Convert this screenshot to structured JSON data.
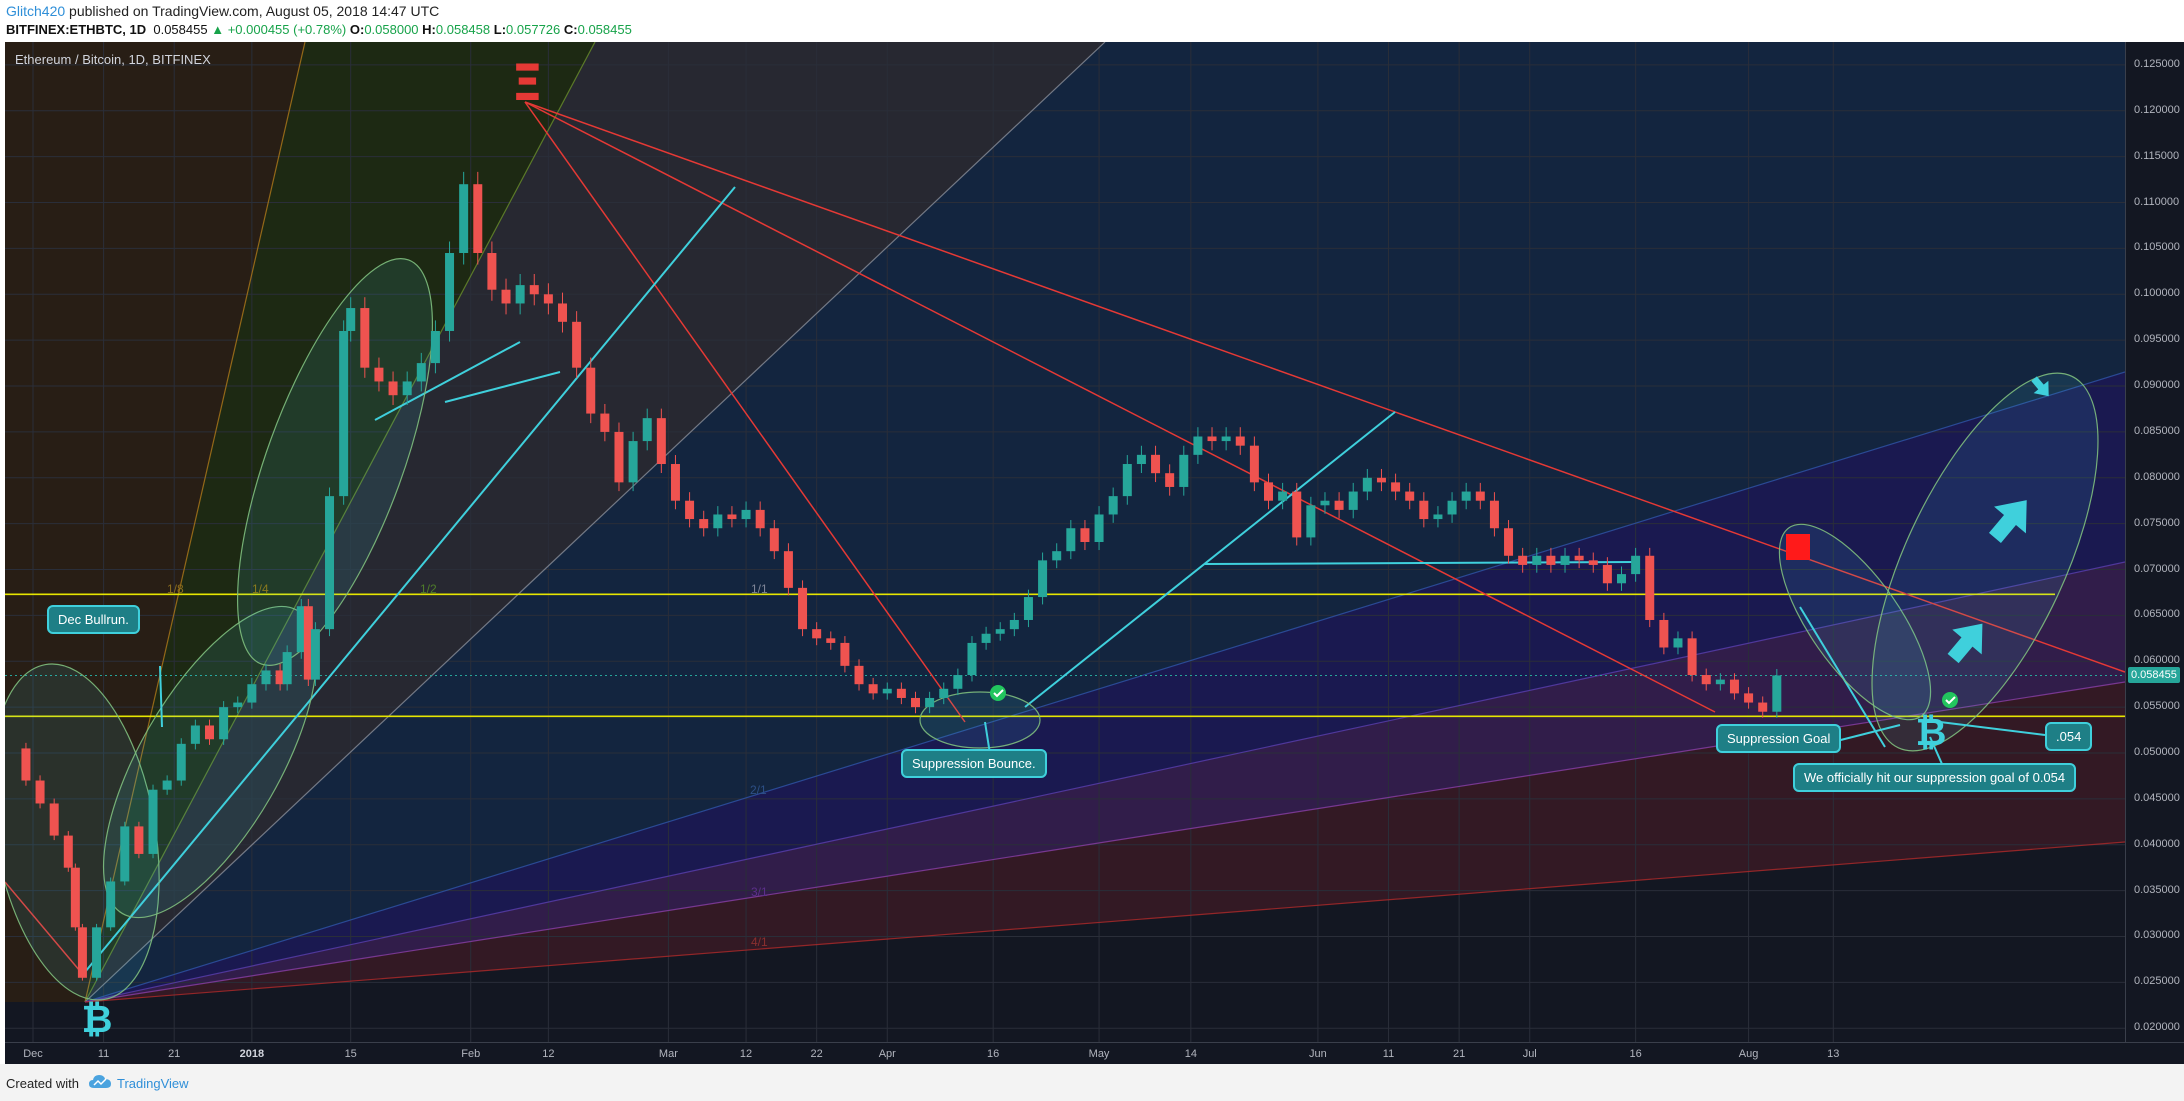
{
  "header": {
    "author": "Glitch420",
    "published": "published on TradingView.com, August 05, 2018 14:47 UTC",
    "symbol": "BITFINEX:ETHBTC, 1D",
    "last": "0.058455",
    "change": "▲ +0.000455 (+0.78%)",
    "o_label": "O:",
    "o_value": "0.058000",
    "h_label": "H:",
    "h_value": "0.058458",
    "l_label": "L:",
    "l_value": "0.057726",
    "c_label": "C:",
    "c_value": "0.058455"
  },
  "chart_title": "Ethereum / Bitcoin, 1D, BITFINEX",
  "annotations": {
    "dec_bullrun": "Dec Bullrun.",
    "suppression_bounce": "Suppression Bounce.",
    "suppression_goal": "Suppression Goal",
    "target": ".054",
    "hit_goal": "We officially hit our suppression goal of 0.054",
    "fib_1_8": "1/8",
    "fib_1_4": "1/4",
    "fib_1_2": "1/2",
    "fib_1_1": "1/1",
    "fib_2_1": "2/1",
    "fib_3_1": "3/1",
    "fib_4_1": "4/1"
  },
  "price_tag": "0.058455",
  "footer": {
    "created_with": "Created with",
    "brand": "TradingView"
  },
  "colors": {
    "background": "#131722",
    "bull": "#26a69a",
    "bear": "#ef5350",
    "annotation": "#3fd0dc",
    "resistance": "#e53935",
    "support_level": "#e6e600"
  },
  "chart_data": {
    "type": "candlestick",
    "title": "Ethereum / Bitcoin, 1D, BITFINEX",
    "symbol": "BITFINEX:ETHBTC",
    "interval": "1D",
    "ylim": [
      0.0185,
      0.1275
    ],
    "y_ticks": [
      "0.125000",
      "0.120000",
      "0.115000",
      "0.110000",
      "0.105000",
      "0.100000",
      "0.095000",
      "0.090000",
      "0.085000",
      "0.080000",
      "0.075000",
      "0.070000",
      "0.065000",
      "0.060000",
      "0.055000",
      "0.050000",
      "0.045000",
      "0.040000",
      "0.035000",
      "0.030000",
      "0.025000",
      "0.020000"
    ],
    "x_ticks": [
      {
        "label": "Dec",
        "date": "2017-12-01"
      },
      {
        "label": "11",
        "date": "2017-12-11"
      },
      {
        "label": "21",
        "date": "2017-12-21"
      },
      {
        "label": "2018",
        "date": "2018-01-01",
        "bold": true
      },
      {
        "label": "15",
        "date": "2018-01-15"
      },
      {
        "label": "Feb",
        "date": "2018-02-01"
      },
      {
        "label": "12",
        "date": "2018-02-12"
      },
      {
        "label": "Mar",
        "date": "2018-03-01"
      },
      {
        "label": "12",
        "date": "2018-03-12"
      },
      {
        "label": "22",
        "date": "2018-03-22"
      },
      {
        "label": "Apr",
        "date": "2018-04-01"
      },
      {
        "label": "16",
        "date": "2018-04-16"
      },
      {
        "label": "May",
        "date": "2018-05-01"
      },
      {
        "label": "14",
        "date": "2018-05-14"
      },
      {
        "label": "Jun",
        "date": "2018-06-01"
      },
      {
        "label": "11",
        "date": "2018-06-11"
      },
      {
        "label": "21",
        "date": "2018-06-21"
      },
      {
        "label": "Jul",
        "date": "2018-07-01"
      },
      {
        "label": "16",
        "date": "2018-07-16"
      },
      {
        "label": "Aug",
        "date": "2018-08-01"
      },
      {
        "label": "13",
        "date": "2018-08-13"
      }
    ],
    "horizontal_levels": [
      0.0673,
      0.054
    ],
    "last_price": 0.058455,
    "close_series": [
      [
        "2017-11-28",
        0.0505
      ],
      [
        "2017-11-30",
        0.047
      ],
      [
        "2017-12-02",
        0.0445
      ],
      [
        "2017-12-04",
        0.041
      ],
      [
        "2017-12-06",
        0.0375
      ],
      [
        "2017-12-07",
        0.031
      ],
      [
        "2017-12-08",
        0.0255
      ],
      [
        "2017-12-10",
        0.031
      ],
      [
        "2017-12-12",
        0.036
      ],
      [
        "2017-12-14",
        0.042
      ],
      [
        "2017-12-16",
        0.039
      ],
      [
        "2017-12-18",
        0.046
      ],
      [
        "2017-12-20",
        0.047
      ],
      [
        "2017-12-22",
        0.051
      ],
      [
        "2017-12-24",
        0.053
      ],
      [
        "2017-12-26",
        0.0515
      ],
      [
        "2017-12-28",
        0.055
      ],
      [
        "2017-12-30",
        0.0555
      ],
      [
        "2018-01-01",
        0.0575
      ],
      [
        "2018-01-03",
        0.059
      ],
      [
        "2018-01-05",
        0.0575
      ],
      [
        "2018-01-06",
        0.061
      ],
      [
        "2018-01-08",
        0.066
      ],
      [
        "2018-01-09",
        0.058
      ],
      [
        "2018-01-10",
        0.0635
      ],
      [
        "2018-01-12",
        0.078
      ],
      [
        "2018-01-14",
        0.096
      ],
      [
        "2018-01-15",
        0.0985
      ],
      [
        "2018-01-17",
        0.092
      ],
      [
        "2018-01-19",
        0.0905
      ],
      [
        "2018-01-21",
        0.089
      ],
      [
        "2018-01-23",
        0.0905
      ],
      [
        "2018-01-25",
        0.0925
      ],
      [
        "2018-01-27",
        0.096
      ],
      [
        "2018-01-29",
        0.1045
      ],
      [
        "2018-01-31",
        0.112
      ],
      [
        "2018-02-02",
        0.1045
      ],
      [
        "2018-02-04",
        0.1005
      ],
      [
        "2018-02-06",
        0.099
      ],
      [
        "2018-02-08",
        0.101
      ],
      [
        "2018-02-10",
        0.1
      ],
      [
        "2018-02-12",
        0.099
      ],
      [
        "2018-02-14",
        0.097
      ],
      [
        "2018-02-16",
        0.092
      ],
      [
        "2018-02-18",
        0.087
      ],
      [
        "2018-02-20",
        0.085
      ],
      [
        "2018-02-22",
        0.0795
      ],
      [
        "2018-02-24",
        0.084
      ],
      [
        "2018-02-26",
        0.0865
      ],
      [
        "2018-02-28",
        0.0815
      ],
      [
        "2018-03-02",
        0.0775
      ],
      [
        "2018-03-04",
        0.0755
      ],
      [
        "2018-03-06",
        0.0745
      ],
      [
        "2018-03-08",
        0.076
      ],
      [
        "2018-03-10",
        0.0755
      ],
      [
        "2018-03-12",
        0.0765
      ],
      [
        "2018-03-14",
        0.0745
      ],
      [
        "2018-03-16",
        0.072
      ],
      [
        "2018-03-18",
        0.068
      ],
      [
        "2018-03-20",
        0.0635
      ],
      [
        "2018-03-22",
        0.0625
      ],
      [
        "2018-03-24",
        0.062
      ],
      [
        "2018-03-26",
        0.0595
      ],
      [
        "2018-03-28",
        0.0575
      ],
      [
        "2018-03-30",
        0.0565
      ],
      [
        "2018-04-01",
        0.057
      ],
      [
        "2018-04-03",
        0.056
      ],
      [
        "2018-04-05",
        0.055
      ],
      [
        "2018-04-07",
        0.056
      ],
      [
        "2018-04-09",
        0.057
      ],
      [
        "2018-04-11",
        0.0585
      ],
      [
        "2018-04-13",
        0.062
      ],
      [
        "2018-04-15",
        0.063
      ],
      [
        "2018-04-17",
        0.0635
      ],
      [
        "2018-04-19",
        0.0645
      ],
      [
        "2018-04-21",
        0.067
      ],
      [
        "2018-04-23",
        0.071
      ],
      [
        "2018-04-25",
        0.072
      ],
      [
        "2018-04-27",
        0.0745
      ],
      [
        "2018-04-29",
        0.073
      ],
      [
        "2018-05-01",
        0.076
      ],
      [
        "2018-05-03",
        0.078
      ],
      [
        "2018-05-05",
        0.0815
      ],
      [
        "2018-05-07",
        0.0825
      ],
      [
        "2018-05-09",
        0.0805
      ],
      [
        "2018-05-11",
        0.079
      ],
      [
        "2018-05-13",
        0.0825
      ],
      [
        "2018-05-15",
        0.0845
      ],
      [
        "2018-05-17",
        0.084
      ],
      [
        "2018-05-19",
        0.0845
      ],
      [
        "2018-05-21",
        0.0835
      ],
      [
        "2018-05-23",
        0.0795
      ],
      [
        "2018-05-25",
        0.0775
      ],
      [
        "2018-05-27",
        0.0785
      ],
      [
        "2018-05-29",
        0.0735
      ],
      [
        "2018-05-31",
        0.077
      ],
      [
        "2018-06-02",
        0.0775
      ],
      [
        "2018-06-04",
        0.0765
      ],
      [
        "2018-06-06",
        0.0785
      ],
      [
        "2018-06-08",
        0.08
      ],
      [
        "2018-06-10",
        0.0795
      ],
      [
        "2018-06-12",
        0.0785
      ],
      [
        "2018-06-14",
        0.0775
      ],
      [
        "2018-06-16",
        0.0755
      ],
      [
        "2018-06-18",
        0.076
      ],
      [
        "2018-06-20",
        0.0775
      ],
      [
        "2018-06-22",
        0.0785
      ],
      [
        "2018-06-24",
        0.0775
      ],
      [
        "2018-06-26",
        0.0745
      ],
      [
        "2018-06-28",
        0.0715
      ],
      [
        "2018-06-30",
        0.0705
      ],
      [
        "2018-07-02",
        0.0715
      ],
      [
        "2018-07-04",
        0.0705
      ],
      [
        "2018-07-06",
        0.0715
      ],
      [
        "2018-07-08",
        0.071
      ],
      [
        "2018-07-10",
        0.0705
      ],
      [
        "2018-07-12",
        0.0685
      ],
      [
        "2018-07-14",
        0.0695
      ],
      [
        "2018-07-16",
        0.0715
      ],
      [
        "2018-07-18",
        0.0645
      ],
      [
        "2018-07-20",
        0.0615
      ],
      [
        "2018-07-22",
        0.0625
      ],
      [
        "2018-07-24",
        0.0585
      ],
      [
        "2018-07-26",
        0.0575
      ],
      [
        "2018-07-28",
        0.058
      ],
      [
        "2018-07-30",
        0.0565
      ],
      [
        "2018-08-01",
        0.0555
      ],
      [
        "2018-08-03",
        0.0545
      ],
      [
        "2018-08-05",
        0.058455
      ]
    ]
  }
}
